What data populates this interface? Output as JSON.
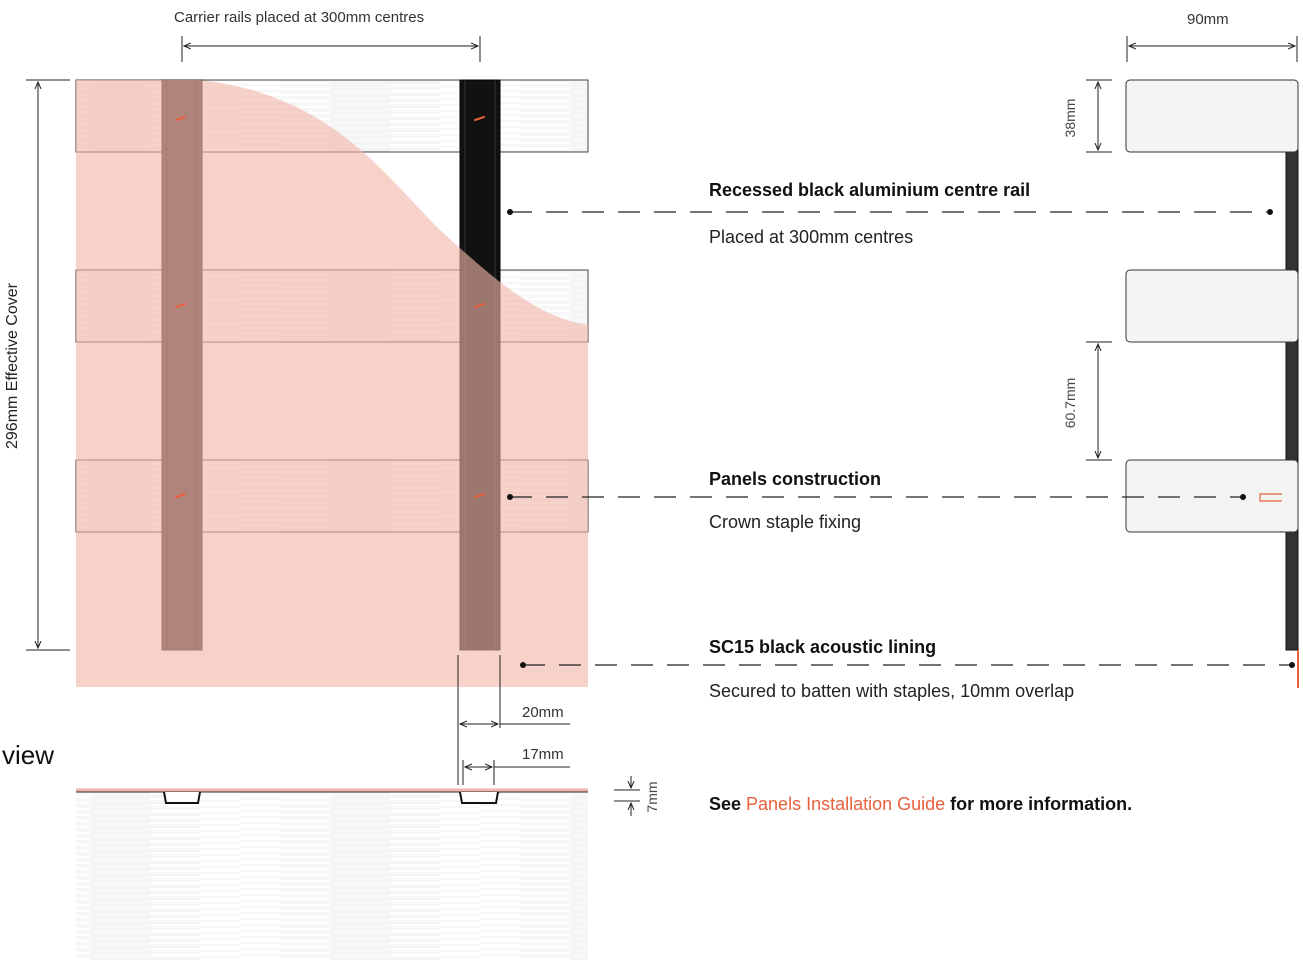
{
  "dimensions": {
    "carrier_rails": "Carrier rails placed at 300mm centres",
    "effective_cover": "296mm Effective Cover",
    "panel_depth": "90mm",
    "panel_height": "38mm",
    "panel_gap": "60.7mm",
    "rail_outer": "20mm",
    "rail_inner": "17mm",
    "rail_depth": "7mm"
  },
  "callouts": [
    {
      "title": "Recessed black aluminium centre rail",
      "subtitle": "Placed at 300mm centres"
    },
    {
      "title": "Panels construction",
      "subtitle": "Crown staple fixing"
    },
    {
      "title": "SC15 black acoustic lining",
      "subtitle": "Secured to batten with staples, 10mm overlap"
    }
  ],
  "section_label": "view",
  "note": {
    "prefix": "See ",
    "link_text": "Panels Installation Guide",
    "suffix": " for more information."
  },
  "colors": {
    "accent": "#e8613c",
    "lining_overlay": "#f0b6aa",
    "rail_dark": "#4a3330",
    "rail_black": "#111111",
    "panel_fill": "#f3f3f3"
  }
}
